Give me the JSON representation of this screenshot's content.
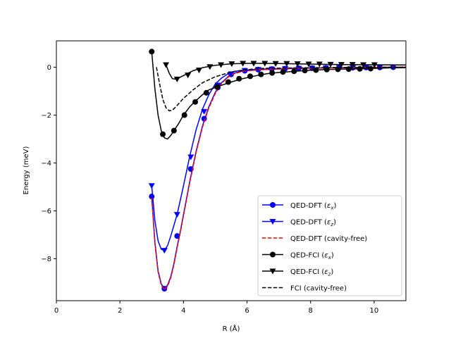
{
  "chart_data": {
    "type": "line",
    "title": "",
    "xlabel": "R (Å)",
    "ylabel": "Energy (meV)",
    "xlim": [
      0,
      11
    ],
    "ylim": [
      -9.75,
      1.1
    ],
    "x_ticks": [
      0,
      2,
      4,
      6,
      8,
      10
    ],
    "x_tick_labels": [
      "0",
      "2",
      "4",
      "6",
      "8",
      "10"
    ],
    "y_ticks": [
      0,
      -2,
      -4,
      -6,
      -8
    ],
    "y_tick_labels": [
      "0",
      "−2",
      "−4",
      "−6",
      "−8"
    ],
    "legend_position": "lower-right",
    "series": [
      {
        "name": "QED-DFT (εx)",
        "label_main": "QED-DFT (",
        "label_sym": "ε",
        "label_sub": "x",
        "color": "#0000ff",
        "dash": "solid",
        "marker": "circle",
        "curve": [
          [
            3.0,
            -5.4
          ],
          [
            3.1,
            -7.3
          ],
          [
            3.2,
            -8.5
          ],
          [
            3.3,
            -9.05
          ],
          [
            3.4,
            -9.25
          ],
          [
            3.5,
            -9.1
          ],
          [
            3.6,
            -8.75
          ],
          [
            3.7,
            -8.2
          ],
          [
            3.8,
            -7.5
          ],
          [
            3.9,
            -6.85
          ],
          [
            4.0,
            -6.15
          ],
          [
            4.2,
            -4.75
          ],
          [
            4.4,
            -3.5
          ],
          [
            4.6,
            -2.45
          ],
          [
            4.8,
            -1.65
          ],
          [
            5.0,
            -1.05
          ],
          [
            5.2,
            -0.65
          ],
          [
            5.4,
            -0.4
          ],
          [
            5.6,
            -0.25
          ],
          [
            5.9,
            -0.15
          ],
          [
            6.5,
            -0.1
          ],
          [
            7.5,
            -0.05
          ],
          [
            9.0,
            -0.02
          ],
          [
            11,
            0.0
          ]
        ],
        "points": [
          [
            3.0,
            -5.4
          ],
          [
            3.4,
            -9.25
          ],
          [
            3.8,
            -7.05
          ],
          [
            4.23,
            -4.25
          ],
          [
            4.65,
            -2.15
          ],
          [
            5.08,
            -0.85
          ],
          [
            5.5,
            -0.3
          ],
          [
            5.93,
            -0.15
          ],
          [
            6.35,
            -0.1
          ],
          [
            6.78,
            -0.08
          ],
          [
            7.2,
            -0.06
          ],
          [
            7.63,
            -0.05
          ],
          [
            8.05,
            -0.04
          ],
          [
            8.48,
            -0.03
          ],
          [
            8.9,
            -0.02
          ],
          [
            9.33,
            -0.02
          ],
          [
            9.75,
            -0.01
          ],
          [
            10.18,
            -0.01
          ],
          [
            10.6,
            0.0
          ]
        ]
      },
      {
        "name": "QED-DFT (εz)",
        "label_main": "QED-DFT (",
        "label_sym": "ε",
        "label_sub": "z",
        "color": "#0000ff",
        "dash": "solid",
        "marker": "triangle-down",
        "curve": [
          [
            3.0,
            -4.95
          ],
          [
            3.1,
            -6.4
          ],
          [
            3.2,
            -7.25
          ],
          [
            3.3,
            -7.6
          ],
          [
            3.4,
            -7.65
          ],
          [
            3.5,
            -7.45
          ],
          [
            3.6,
            -7.05
          ],
          [
            3.7,
            -6.6
          ],
          [
            3.8,
            -6.15
          ],
          [
            3.9,
            -5.55
          ],
          [
            4.0,
            -4.95
          ],
          [
            4.2,
            -3.7
          ],
          [
            4.4,
            -2.6
          ],
          [
            4.6,
            -1.75
          ],
          [
            4.8,
            -1.15
          ],
          [
            5.0,
            -0.7
          ],
          [
            5.2,
            -0.45
          ],
          [
            5.4,
            -0.28
          ],
          [
            5.6,
            -0.18
          ],
          [
            5.9,
            -0.12
          ],
          [
            6.5,
            -0.08
          ],
          [
            7.5,
            -0.04
          ],
          [
            9.0,
            -0.02
          ],
          [
            11,
            0.0
          ]
        ],
        "points": [
          [
            3.0,
            -4.95
          ],
          [
            3.4,
            -7.65
          ],
          [
            3.8,
            -6.15
          ],
          [
            4.23,
            -3.75
          ],
          [
            4.65,
            -1.85
          ],
          [
            5.08,
            -0.75
          ],
          [
            5.5,
            -0.28
          ],
          [
            5.93,
            -0.14
          ],
          [
            6.35,
            -0.1
          ],
          [
            6.78,
            -0.08
          ],
          [
            7.2,
            -0.06
          ],
          [
            7.63,
            -0.05
          ],
          [
            8.05,
            -0.04
          ],
          [
            8.48,
            -0.03
          ],
          [
            8.9,
            -0.02
          ],
          [
            9.33,
            -0.02
          ],
          [
            9.75,
            -0.01
          ],
          [
            10.18,
            -0.01
          ],
          [
            10.6,
            0.0
          ]
        ]
      },
      {
        "name": "QED-DFT (cavity-free)",
        "label_main": "QED-DFT (cavity-free)",
        "label_sym": "",
        "label_sub": "",
        "color": "#ff0000",
        "dash": "dashed",
        "marker": "none",
        "curve": [
          [
            3.0,
            -5.45
          ],
          [
            3.1,
            -7.35
          ],
          [
            3.2,
            -8.55
          ],
          [
            3.3,
            -9.1
          ],
          [
            3.4,
            -9.3
          ],
          [
            3.5,
            -9.15
          ],
          [
            3.6,
            -8.8
          ],
          [
            3.7,
            -8.25
          ],
          [
            3.8,
            -7.55
          ],
          [
            3.9,
            -6.9
          ],
          [
            4.0,
            -6.2
          ],
          [
            4.2,
            -4.8
          ],
          [
            4.4,
            -3.55
          ],
          [
            4.6,
            -2.5
          ],
          [
            4.8,
            -1.7
          ],
          [
            5.0,
            -1.1
          ],
          [
            5.2,
            -0.68
          ],
          [
            5.4,
            -0.42
          ],
          [
            5.6,
            -0.27
          ],
          [
            5.9,
            -0.16
          ],
          [
            6.5,
            -0.1
          ],
          [
            7.5,
            -0.05
          ],
          [
            9.0,
            -0.02
          ],
          [
            11,
            0.0
          ]
        ],
        "points": []
      },
      {
        "name": "QED-FCI (εx)",
        "label_main": "QED-FCI (",
        "label_sym": "ε",
        "label_sub": "x",
        "color": "#000000",
        "dash": "solid",
        "marker": "circle",
        "curve": [
          [
            3.0,
            0.65
          ],
          [
            3.1,
            -0.9
          ],
          [
            3.2,
            -2.0
          ],
          [
            3.3,
            -2.65
          ],
          [
            3.4,
            -2.95
          ],
          [
            3.5,
            -3.0
          ],
          [
            3.6,
            -2.85
          ],
          [
            3.7,
            -2.65
          ],
          [
            3.85,
            -2.35
          ],
          [
            4.0,
            -2.0
          ],
          [
            4.2,
            -1.65
          ],
          [
            4.35,
            -1.45
          ],
          [
            4.6,
            -1.15
          ],
          [
            4.8,
            -0.95
          ],
          [
            5.1,
            -0.8
          ],
          [
            5.5,
            -0.62
          ],
          [
            5.8,
            -0.5
          ],
          [
            6.2,
            -0.38
          ],
          [
            6.6,
            -0.28
          ],
          [
            7.0,
            -0.22
          ],
          [
            7.5,
            -0.17
          ],
          [
            8.0,
            -0.13
          ],
          [
            8.5,
            -0.1
          ],
          [
            9.0,
            -0.08
          ],
          [
            9.5,
            -0.07
          ],
          [
            10,
            -0.05
          ],
          [
            10.5,
            -0.03
          ],
          [
            11,
            -0.02
          ]
        ],
        "points": [
          [
            3.0,
            0.65
          ],
          [
            3.35,
            -2.8
          ],
          [
            3.7,
            -2.65
          ],
          [
            4.03,
            -2.0
          ],
          [
            4.37,
            -1.45
          ],
          [
            4.72,
            -1.07
          ],
          [
            5.06,
            -0.82
          ],
          [
            5.41,
            -0.62
          ],
          [
            5.75,
            -0.48
          ],
          [
            6.1,
            -0.38
          ],
          [
            6.44,
            -0.3
          ],
          [
            6.79,
            -0.24
          ],
          [
            7.13,
            -0.2
          ],
          [
            7.48,
            -0.17
          ],
          [
            7.82,
            -0.14
          ],
          [
            8.17,
            -0.12
          ],
          [
            8.51,
            -0.1
          ],
          [
            8.86,
            -0.09
          ],
          [
            9.2,
            -0.08
          ],
          [
            9.55,
            -0.07
          ],
          [
            9.89,
            -0.06
          ]
        ]
      },
      {
        "name": "QED-FCI (εz)",
        "label_main": "QED-FCI (",
        "label_sym": "ε",
        "label_sub": "z",
        "color": "#000000",
        "dash": "solid",
        "marker": "triangle-down",
        "curve": [
          [
            3.45,
            0.1
          ],
          [
            3.55,
            -0.25
          ],
          [
            3.65,
            -0.48
          ],
          [
            3.75,
            -0.5
          ],
          [
            3.85,
            -0.45
          ],
          [
            4.0,
            -0.35
          ],
          [
            4.3,
            -0.15
          ],
          [
            4.6,
            -0.02
          ],
          [
            5.0,
            0.08
          ],
          [
            5.5,
            0.14
          ],
          [
            6.0,
            0.16
          ],
          [
            6.5,
            0.16
          ],
          [
            7.0,
            0.15
          ],
          [
            8.0,
            0.13
          ],
          [
            9.0,
            0.11
          ],
          [
            10.0,
            0.1
          ],
          [
            11,
            0.09
          ]
        ],
        "points": [
          [
            3.45,
            0.1
          ],
          [
            3.8,
            -0.5
          ],
          [
            4.14,
            -0.33
          ],
          [
            4.49,
            -0.12
          ],
          [
            4.83,
            0.02
          ],
          [
            5.18,
            0.1
          ],
          [
            5.52,
            0.14
          ],
          [
            5.87,
            0.16
          ],
          [
            6.21,
            0.16
          ],
          [
            6.56,
            0.16
          ],
          [
            6.9,
            0.15
          ],
          [
            7.25,
            0.15
          ],
          [
            7.59,
            0.14
          ],
          [
            7.94,
            0.13
          ],
          [
            8.28,
            0.13
          ],
          [
            8.63,
            0.12
          ],
          [
            8.97,
            0.11
          ],
          [
            9.32,
            0.11
          ],
          [
            9.66,
            0.1
          ],
          [
            10.01,
            0.1
          ]
        ]
      },
      {
        "name": "FCI (cavity-free)",
        "label_main": "FCI (cavity-free)",
        "label_sym": "",
        "label_sub": "",
        "color": "#000000",
        "dash": "dashed",
        "marker": "none",
        "curve": [
          [
            3.15,
            0.0
          ],
          [
            3.25,
            -0.7
          ],
          [
            3.35,
            -1.35
          ],
          [
            3.45,
            -1.7
          ],
          [
            3.55,
            -1.82
          ],
          [
            3.65,
            -1.8
          ],
          [
            3.8,
            -1.6
          ],
          [
            4.0,
            -1.3
          ],
          [
            4.3,
            -0.95
          ],
          [
            4.6,
            -0.65
          ],
          [
            5.0,
            -0.4
          ],
          [
            5.5,
            -0.2
          ],
          [
            6.0,
            -0.1
          ],
          [
            6.5,
            -0.05
          ],
          [
            7.5,
            -0.03
          ],
          [
            9.0,
            -0.01
          ],
          [
            11,
            0.0
          ]
        ],
        "points": []
      }
    ]
  }
}
